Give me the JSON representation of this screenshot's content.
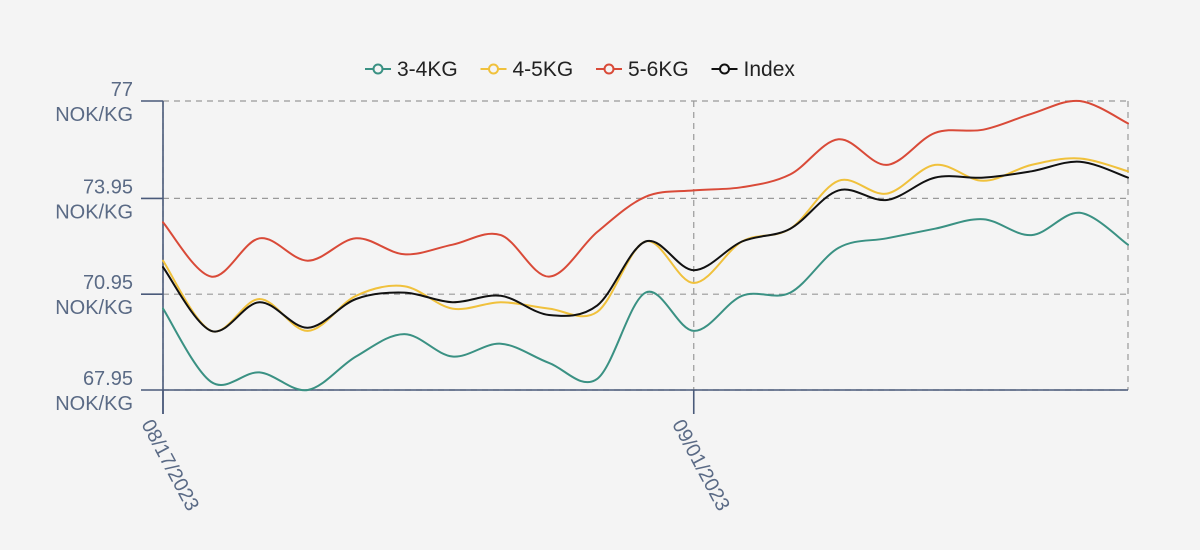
{
  "chart_data": {
    "type": "line",
    "title": "",
    "xlabel": "",
    "ylabel": "",
    "unit": "NOK/KG",
    "ylim": [
      67.95,
      77
    ],
    "y_ticks": [
      {
        "value": 77,
        "label": "77",
        "unit": "NOK/KG"
      },
      {
        "value": 73.95,
        "label": "73.95",
        "unit": "NOK/KG"
      },
      {
        "value": 70.95,
        "label": "70.95",
        "unit": "NOK/KG"
      },
      {
        "value": 67.95,
        "label": "67.95",
        "unit": "NOK/KG"
      }
    ],
    "x_ticks": [
      {
        "index": 0,
        "label": "08/17/2023"
      },
      {
        "index": 11,
        "label": "09/01/2023"
      }
    ],
    "grid": true,
    "legend_position": "top-center",
    "point_count": 21,
    "series": [
      {
        "name": "3-4KG",
        "color": "#3a9183",
        "values": [
          70.5,
          68.2,
          68.5,
          67.95,
          69.0,
          69.7,
          69.0,
          69.4,
          68.8,
          68.3,
          71.0,
          69.8,
          70.9,
          71.0,
          72.4,
          72.7,
          73.0,
          73.3,
          72.8,
          73.5,
          72.5
        ]
      },
      {
        "name": "4-5KG",
        "color": "#f0c13c",
        "values": [
          72.0,
          69.8,
          70.8,
          69.8,
          70.9,
          71.2,
          70.5,
          70.7,
          70.5,
          70.4,
          72.6,
          71.3,
          72.6,
          73.0,
          74.5,
          74.1,
          75.0,
          74.5,
          75.0,
          75.2,
          74.8
        ]
      },
      {
        "name": "5-6KG",
        "color": "#d94a38",
        "values": [
          73.2,
          71.5,
          72.7,
          72.0,
          72.7,
          72.2,
          72.5,
          72.8,
          71.5,
          72.9,
          74.0,
          74.2,
          74.3,
          74.7,
          75.8,
          75.0,
          76.0,
          76.1,
          76.6,
          77.0,
          76.3
        ]
      },
      {
        "name": "Index",
        "color": "#111111",
        "values": [
          71.8,
          69.8,
          70.7,
          69.9,
          70.8,
          71.0,
          70.7,
          70.9,
          70.3,
          70.6,
          72.6,
          71.7,
          72.6,
          73.0,
          74.2,
          73.9,
          74.6,
          74.6,
          74.8,
          75.1,
          74.6
        ]
      }
    ]
  }
}
